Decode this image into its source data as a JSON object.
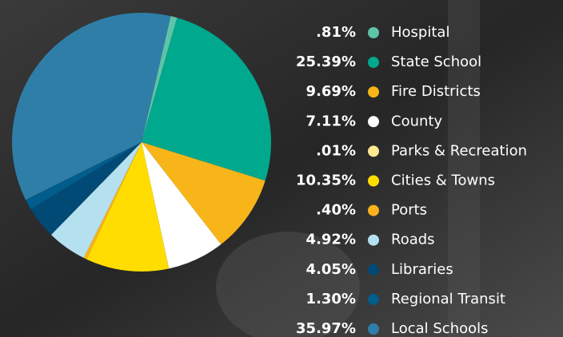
{
  "chart_data": {
    "type": "pie",
    "categories": [
      "Hospital",
      "State School",
      "Fire Districts",
      "County",
      "Parks & Recreation",
      "Cities & Towns",
      "Ports",
      "Roads",
      "Libraries",
      "Regional Transit",
      "Local Schools"
    ],
    "values": [
      0.81,
      25.39,
      9.69,
      7.11,
      0.01,
      10.35,
      0.4,
      4.92,
      4.05,
      1.3,
      35.97
    ],
    "value_labels": [
      ".81%",
      "25.39%",
      "9.69%",
      "7.11%",
      ".01%",
      "10.35%",
      ".40%",
      "4.92%",
      "4.05%",
      "1.30%",
      "35.97%"
    ],
    "colors": [
      "#5ec4a8",
      "#00a88e",
      "#f7b519",
      "#ffffff",
      "#fde98f",
      "#ffdd00",
      "#f9b21b",
      "#b5e0f0",
      "#004a75",
      "#005d8c",
      "#2f7ea8"
    ]
  }
}
